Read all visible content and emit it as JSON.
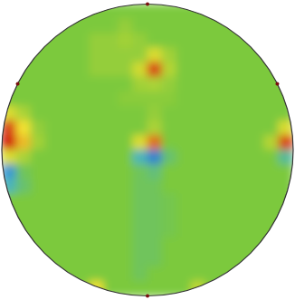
{
  "chart_data": {
    "type": "heatmap",
    "xlim": [
      -1,
      1
    ],
    "ylim": [
      -1,
      1
    ],
    "color_range": [
      0,
      1
    ],
    "tick_labels": false,
    "cells": [
      [
        0.5,
        0.5,
        0.5,
        0.5,
        0.5,
        0.5,
        0.5,
        0.5,
        0.5,
        0.5,
        0.5,
        0.5,
        0.5,
        0.5,
        0.5,
        0.5,
        0.5,
        0.5,
        0.5,
        0.5
      ],
      [
        0.5,
        0.5,
        0.5,
        0.5,
        0.5,
        0.5,
        0.5,
        0.5,
        0.55,
        0.5,
        0.5,
        0.5,
        0.5,
        0.5,
        0.5,
        0.5,
        0.5,
        0.5,
        0.5,
        0.5
      ],
      [
        0.5,
        0.5,
        0.5,
        0.5,
        0.5,
        0.5,
        0.55,
        0.55,
        0.58,
        0.55,
        0.5,
        0.5,
        0.5,
        0.5,
        0.5,
        0.5,
        0.5,
        0.5,
        0.5,
        0.5
      ],
      [
        0.5,
        0.5,
        0.5,
        0.5,
        0.5,
        0.5,
        0.55,
        0.55,
        0.55,
        0.55,
        0.7,
        0.58,
        0.5,
        0.5,
        0.5,
        0.5,
        0.5,
        0.5,
        0.5,
        0.5
      ],
      [
        0.5,
        0.5,
        0.5,
        0.5,
        0.5,
        0.5,
        0.55,
        0.55,
        0.55,
        0.68,
        0.95,
        0.62,
        0.5,
        0.5,
        0.5,
        0.5,
        0.5,
        0.5,
        0.5,
        0.5
      ],
      [
        0.5,
        0.5,
        0.5,
        0.5,
        0.5,
        0.5,
        0.5,
        0.5,
        0.5,
        0.58,
        0.6,
        0.55,
        0.5,
        0.5,
        0.5,
        0.5,
        0.5,
        0.5,
        0.5,
        0.5
      ],
      [
        0.5,
        0.5,
        0.5,
        0.5,
        0.5,
        0.5,
        0.5,
        0.5,
        0.53,
        0.53,
        0.53,
        0.53,
        0.5,
        0.5,
        0.5,
        0.5,
        0.5,
        0.5,
        0.5,
        0.5
      ],
      [
        0.7,
        0.6,
        0.5,
        0.5,
        0.5,
        0.5,
        0.5,
        0.5,
        0.5,
        0.5,
        0.55,
        0.5,
        0.5,
        0.5,
        0.5,
        0.5,
        0.5,
        0.5,
        0.5,
        0.5
      ],
      [
        0.95,
        0.75,
        0.55,
        0.5,
        0.5,
        0.5,
        0.5,
        0.5,
        0.5,
        0.5,
        0.6,
        0.5,
        0.5,
        0.5,
        0.5,
        0.5,
        0.5,
        0.5,
        0.5,
        0.7
      ],
      [
        1.0,
        0.8,
        0.58,
        0.5,
        0.5,
        0.5,
        0.5,
        0.5,
        0.5,
        0.7,
        0.9,
        0.5,
        0.5,
        0.5,
        0.5,
        0.5,
        0.5,
        0.5,
        0.62,
        0.95
      ],
      [
        0.7,
        0.6,
        0.5,
        0.5,
        0.5,
        0.5,
        0.5,
        0.5,
        0.5,
        0.3,
        0.15,
        0.42,
        0.5,
        0.5,
        0.5,
        0.5,
        0.5,
        0.5,
        0.5,
        0.35
      ],
      [
        0.2,
        0.45,
        0.5,
        0.5,
        0.5,
        0.5,
        0.5,
        0.5,
        0.5,
        0.45,
        0.4,
        0.5,
        0.5,
        0.5,
        0.5,
        0.5,
        0.5,
        0.5,
        0.5,
        0.5
      ],
      [
        0.3,
        0.42,
        0.5,
        0.5,
        0.5,
        0.5,
        0.5,
        0.5,
        0.5,
        0.45,
        0.45,
        0.5,
        0.5,
        0.5,
        0.5,
        0.5,
        0.5,
        0.5,
        0.5,
        0.5
      ],
      [
        0.5,
        0.5,
        0.5,
        0.5,
        0.5,
        0.5,
        0.5,
        0.5,
        0.5,
        0.45,
        0.45,
        0.47,
        0.5,
        0.5,
        0.5,
        0.5,
        0.5,
        0.5,
        0.5,
        0.5
      ],
      [
        0.5,
        0.5,
        0.5,
        0.5,
        0.5,
        0.5,
        0.5,
        0.5,
        0.5,
        0.45,
        0.45,
        0.47,
        0.5,
        0.5,
        0.5,
        0.5,
        0.5,
        0.5,
        0.5,
        0.5
      ],
      [
        0.5,
        0.5,
        0.5,
        0.5,
        0.5,
        0.5,
        0.5,
        0.5,
        0.5,
        0.45,
        0.45,
        0.47,
        0.5,
        0.5,
        0.5,
        0.5,
        0.5,
        0.5,
        0.5,
        0.5
      ],
      [
        0.5,
        0.5,
        0.5,
        0.5,
        0.5,
        0.5,
        0.5,
        0.5,
        0.5,
        0.45,
        0.45,
        0.5,
        0.5,
        0.5,
        0.5,
        0.5,
        0.5,
        0.5,
        0.5,
        0.5
      ],
      [
        0.5,
        0.5,
        0.5,
        0.5,
        0.5,
        0.5,
        0.5,
        0.5,
        0.5,
        0.45,
        0.45,
        0.5,
        0.5,
        0.5,
        0.5,
        0.5,
        0.5,
        0.5,
        0.5,
        0.5
      ],
      [
        0.5,
        0.5,
        0.5,
        0.5,
        0.5,
        0.5,
        0.5,
        0.5,
        0.5,
        0.45,
        0.5,
        0.5,
        0.5,
        0.5,
        0.5,
        0.5,
        0.5,
        0.5,
        0.5,
        0.5
      ],
      [
        0.5,
        0.5,
        0.5,
        0.5,
        0.5,
        0.5,
        0.75,
        0.5,
        0.5,
        0.5,
        0.5,
        0.5,
        0.5,
        0.65,
        0.5,
        0.5,
        0.5,
        0.5,
        0.5,
        0.5
      ]
    ]
  }
}
